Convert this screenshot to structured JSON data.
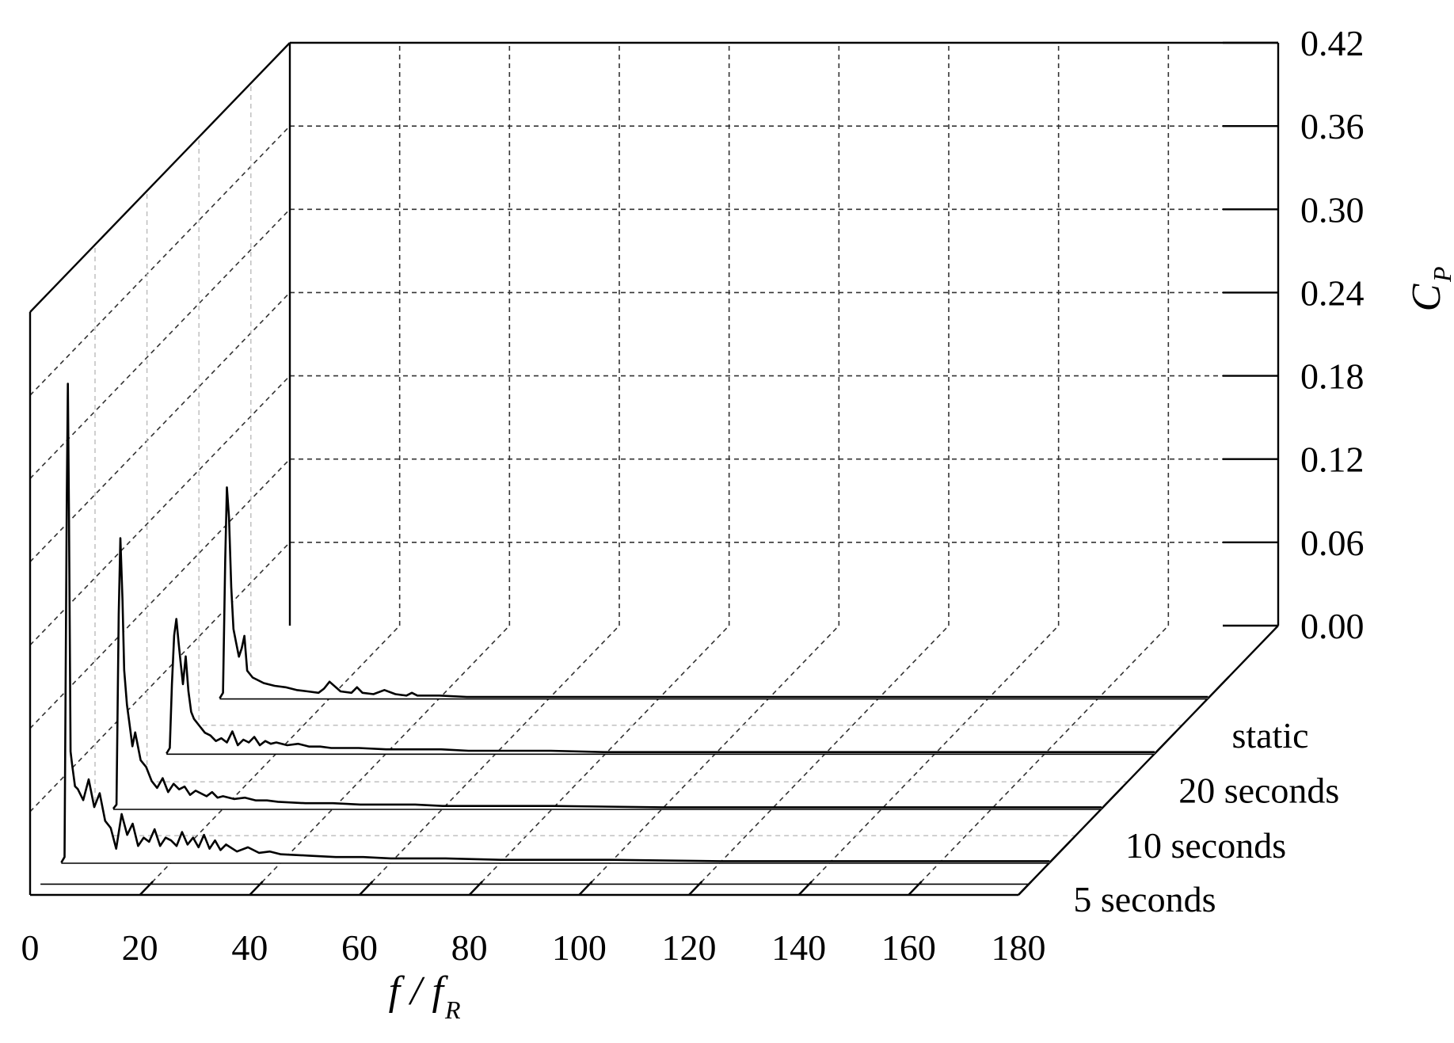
{
  "chart_data": {
    "type": "line",
    "style": "3d-waterfall",
    "xlabel": {
      "main": "f / f",
      "sub": "R"
    },
    "ylabel": {
      "main": "C",
      "sub": "P"
    },
    "x_ticks": [
      "0",
      "20",
      "40",
      "60",
      "80",
      "100",
      "120",
      "140",
      "160",
      "180"
    ],
    "y_ticks": [
      "0.00",
      "0.06",
      "0.12",
      "0.18",
      "0.24",
      "0.30",
      "0.36",
      "0.42"
    ],
    "xlim": [
      0,
      180
    ],
    "ylim": [
      0,
      0.42
    ],
    "grid": true,
    "series": [
      {
        "name": "5 seconds",
        "x": [
          0,
          0.6,
          1.0,
          1.2,
          1.4,
          1.7,
          2,
          2.5,
          3,
          4,
          5,
          6,
          7,
          8,
          9,
          10,
          11,
          12,
          13,
          14,
          15,
          16,
          17,
          18,
          19,
          20,
          21,
          22,
          23,
          24,
          25,
          26,
          27,
          28,
          29,
          30,
          32,
          34,
          36,
          38,
          40,
          45,
          50,
          55,
          60,
          70,
          80,
          100,
          120,
          140,
          160,
          180
        ],
        "y": [
          0.0,
          0.004,
          0.26,
          0.345,
          0.25,
          0.08,
          0.07,
          0.055,
          0.053,
          0.045,
          0.06,
          0.04,
          0.05,
          0.03,
          0.025,
          0.01,
          0.035,
          0.02,
          0.028,
          0.012,
          0.018,
          0.015,
          0.024,
          0.012,
          0.018,
          0.016,
          0.012,
          0.022,
          0.013,
          0.018,
          0.011,
          0.02,
          0.01,
          0.016,
          0.009,
          0.013,
          0.008,
          0.011,
          0.007,
          0.008,
          0.006,
          0.005,
          0.004,
          0.004,
          0.003,
          0.003,
          0.002,
          0.002,
          0.001,
          0.001,
          0.001,
          0.001
        ]
      },
      {
        "name": "10 seconds",
        "x": [
          0,
          0.6,
          1.0,
          1.3,
          1.7,
          2,
          2.5,
          3,
          3.5,
          4,
          5,
          6,
          7,
          8,
          9,
          10,
          11,
          12,
          13,
          14,
          15,
          16,
          17,
          18,
          19,
          20,
          22,
          24,
          26,
          28,
          30,
          35,
          40,
          45,
          50,
          55,
          60,
          70,
          80,
          100,
          120,
          140,
          160,
          180
        ],
        "y": [
          0.0,
          0.003,
          0.14,
          0.195,
          0.15,
          0.1,
          0.075,
          0.06,
          0.045,
          0.055,
          0.035,
          0.03,
          0.02,
          0.015,
          0.022,
          0.012,
          0.018,
          0.014,
          0.016,
          0.01,
          0.013,
          0.011,
          0.009,
          0.012,
          0.008,
          0.009,
          0.007,
          0.008,
          0.006,
          0.006,
          0.005,
          0.004,
          0.004,
          0.003,
          0.003,
          0.003,
          0.002,
          0.002,
          0.002,
          0.001,
          0.001,
          0.001,
          0.001,
          0.001
        ]
      },
      {
        "name": "20 seconds",
        "x": [
          0,
          0.6,
          1.0,
          1.4,
          1.8,
          2.2,
          2.6,
          3,
          3.5,
          4,
          4.5,
          5,
          6,
          7,
          8,
          9,
          10,
          11,
          12,
          13,
          14,
          15,
          16,
          17,
          18,
          19,
          20,
          22,
          24,
          26,
          28,
          30,
          35,
          40,
          45,
          50,
          55,
          60,
          70,
          80,
          100,
          120,
          140,
          160,
          180
        ],
        "y": [
          0.0,
          0.004,
          0.05,
          0.085,
          0.097,
          0.08,
          0.065,
          0.05,
          0.07,
          0.045,
          0.03,
          0.025,
          0.02,
          0.015,
          0.013,
          0.009,
          0.011,
          0.008,
          0.016,
          0.006,
          0.01,
          0.008,
          0.012,
          0.006,
          0.009,
          0.007,
          0.008,
          0.006,
          0.007,
          0.005,
          0.005,
          0.004,
          0.004,
          0.003,
          0.003,
          0.003,
          0.002,
          0.002,
          0.002,
          0.001,
          0.001,
          0.001,
          0.001,
          0.001,
          0.001
        ]
      },
      {
        "name": "static",
        "x": [
          0,
          0.6,
          1.0,
          1.3,
          1.7,
          2.1,
          2.5,
          3,
          3.5,
          4,
          4.5,
          5,
          6,
          7,
          8,
          9,
          10,
          12,
          14,
          16,
          18,
          19,
          20,
          22,
          24,
          25,
          26,
          28,
          30,
          32,
          34,
          35,
          36,
          38,
          40,
          45,
          50,
          55,
          60,
          70,
          80,
          100,
          120,
          140,
          160,
          180
        ],
        "y": [
          0.0,
          0.004,
          0.1,
          0.152,
          0.13,
          0.08,
          0.05,
          0.04,
          0.03,
          0.036,
          0.045,
          0.02,
          0.015,
          0.013,
          0.011,
          0.01,
          0.009,
          0.008,
          0.006,
          0.005,
          0.004,
          0.007,
          0.012,
          0.005,
          0.004,
          0.008,
          0.004,
          0.003,
          0.006,
          0.003,
          0.002,
          0.004,
          0.002,
          0.002,
          0.002,
          0.001,
          0.001,
          0.001,
          0.001,
          0.001,
          0.001,
          0.001,
          0.001,
          0.001,
          0.001,
          0.001
        ]
      }
    ]
  }
}
